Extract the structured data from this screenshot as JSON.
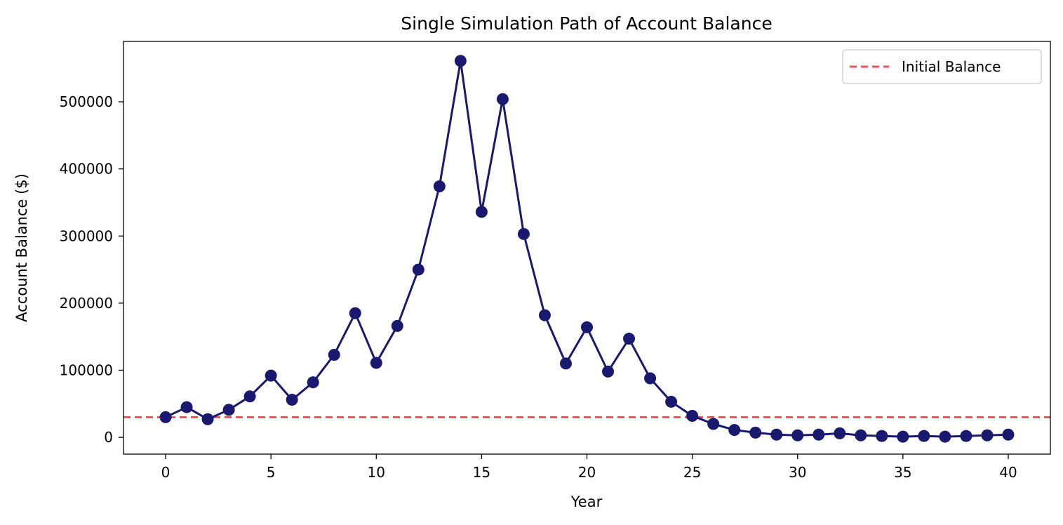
{
  "chart_data": {
    "type": "line",
    "title": "Single Simulation Path of Account Balance",
    "xlabel": "Year",
    "ylabel": "Account Balance ($)",
    "xlim": [
      -2,
      42
    ],
    "ylim": [
      -25000,
      590000
    ],
    "xticks": [
      0,
      5,
      10,
      15,
      20,
      25,
      30,
      35,
      40
    ],
    "yticks": [
      0,
      100000,
      200000,
      300000,
      400000,
      500000
    ],
    "grid": false,
    "legend_position": "top-right",
    "series": [
      {
        "name": "",
        "color": "#191970",
        "marker": "circle",
        "x": [
          0,
          1,
          2,
          3,
          4,
          5,
          6,
          7,
          8,
          9,
          10,
          11,
          12,
          13,
          14,
          15,
          16,
          17,
          18,
          19,
          20,
          21,
          22,
          23,
          24,
          25,
          26,
          27,
          28,
          29,
          30,
          31,
          32,
          33,
          34,
          35,
          36,
          37,
          38,
          39,
          40
        ],
        "y": [
          30000,
          45000,
          27000,
          41000,
          61000,
          92000,
          56000,
          82000,
          123000,
          185000,
          111000,
          166000,
          250000,
          374000,
          561000,
          336000,
          504000,
          303000,
          182000,
          110000,
          164000,
          98000,
          147000,
          88000,
          53000,
          32000,
          20000,
          11000,
          7000,
          4000,
          3000,
          4000,
          6000,
          3000,
          2000,
          1000,
          2000,
          1000,
          2000,
          3000,
          4000
        ]
      }
    ],
    "reference_lines": [
      {
        "name": "Initial Balance",
        "y": 30000,
        "color": "#f05050",
        "style": "dashed"
      }
    ]
  }
}
